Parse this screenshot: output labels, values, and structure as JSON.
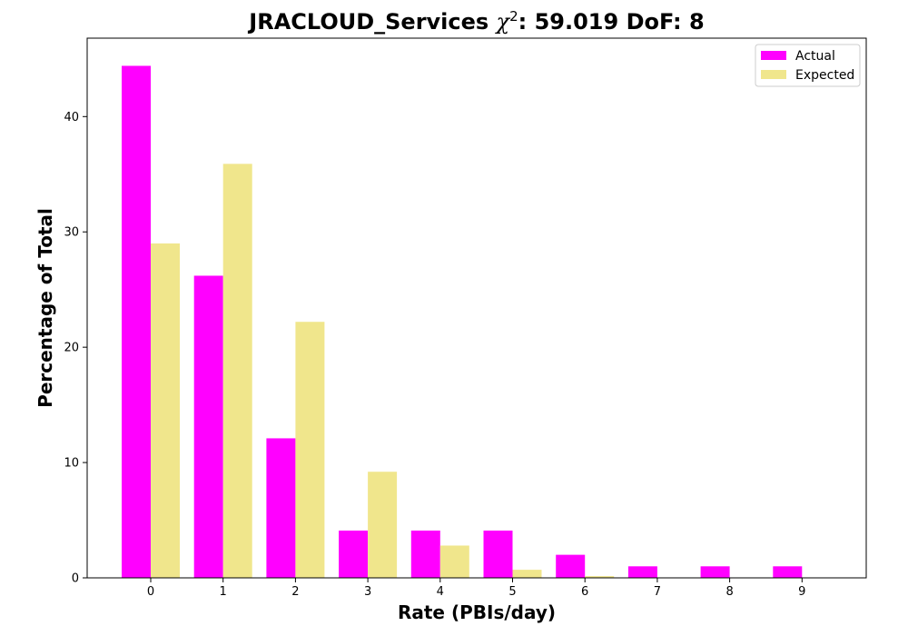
{
  "chart_data": {
    "type": "bar",
    "title": {
      "prefix": "JRACLOUD_Services ",
      "chi_symbol": "χ",
      "chi_power": "2",
      "suffix": ": 59.019 DoF: 8"
    },
    "xlabel": "Rate (PBIs/day)",
    "ylabel": "Percentage of Total",
    "categories": [
      "0",
      "1",
      "2",
      "3",
      "4",
      "5",
      "6",
      "7",
      "8",
      "9"
    ],
    "ylim": [
      0,
      46.8
    ],
    "yticks": [
      0,
      10,
      20,
      30,
      40
    ],
    "grid": false,
    "legend_position": "top-right",
    "series": [
      {
        "name": "Actual",
        "color": "#ff00ff",
        "values": [
          44.4,
          26.2,
          12.1,
          4.1,
          4.1,
          4.1,
          2.0,
          1.0,
          1.0,
          1.0
        ]
      },
      {
        "name": "Expected",
        "color": "#f0e68c",
        "values": [
          29.0,
          35.9,
          22.2,
          9.2,
          2.8,
          0.7,
          0.15,
          0.03,
          0.0,
          0.0
        ]
      }
    ]
  }
}
